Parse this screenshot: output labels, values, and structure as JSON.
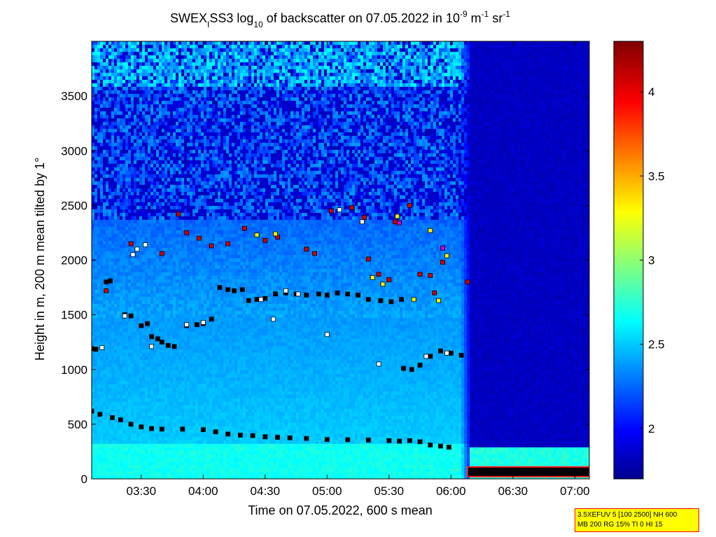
{
  "chart_data": {
    "type": "heatmap",
    "title": {
      "prefix": "SWEX",
      "sub1": "I",
      "mid": "SS3 log",
      "sub2": "10",
      "mid2": " of backscatter on 07.05.2022 in 10",
      "sup1": "-9",
      "mid3": " m",
      "sup2": "-1",
      "mid4": " sr",
      "sup3": "-1"
    },
    "xlabel": "Time on 07.05.2022, 600 s mean",
    "ylabel": "Height in m, 200 m mean tilted by 1°",
    "x_ticks": [
      "03:30",
      "04:00",
      "04:30",
      "05:00",
      "05:30",
      "06:00",
      "06:30",
      "07:00"
    ],
    "x_tick_minutes": [
      210,
      240,
      270,
      300,
      330,
      360,
      390,
      420
    ],
    "xlim_minutes": [
      186,
      427
    ],
    "y_ticks": [
      "0",
      "500",
      "1000",
      "1500",
      "2000",
      "2500",
      "3000",
      "3500"
    ],
    "y_tick_values": [
      0,
      500,
      1000,
      1500,
      2000,
      2500,
      3000,
      3500
    ],
    "ylim": [
      0,
      4000
    ],
    "colorbar": {
      "ticks": [
        "2",
        "2.5",
        "3",
        "3.5",
        "4"
      ],
      "tick_values": [
        2,
        2.5,
        3,
        3.5,
        4
      ],
      "range": [
        1.7,
        4.3
      ],
      "colormap": "jet"
    },
    "regions": {
      "data_end_minutes": 366,
      "low_layer_top_m": 300
    },
    "series": [
      {
        "marker_color": "#000000",
        "points": [
          [
            186,
            620
          ],
          [
            190,
            590
          ],
          [
            196,
            560
          ],
          [
            200,
            540
          ],
          [
            205,
            500
          ],
          [
            210,
            475
          ],
          [
            215,
            460
          ],
          [
            220,
            455
          ],
          [
            230,
            455
          ],
          [
            240,
            450
          ],
          [
            246,
            430
          ],
          [
            252,
            410
          ],
          [
            258,
            400
          ],
          [
            264,
            395
          ],
          [
            270,
            385
          ],
          [
            276,
            380
          ],
          [
            282,
            375
          ],
          [
            290,
            370
          ],
          [
            300,
            360
          ],
          [
            310,
            358
          ],
          [
            320,
            355
          ],
          [
            330,
            350
          ],
          [
            335,
            345
          ],
          [
            340,
            350
          ],
          [
            345,
            340
          ],
          [
            350,
            310
          ],
          [
            355,
            300
          ],
          [
            359,
            290
          ]
        ]
      },
      {
        "marker_color": "#000000",
        "points": [
          [
            186,
            1190
          ],
          [
            188,
            1185
          ],
          [
            193,
            1800
          ],
          [
            195,
            1810
          ],
          [
            202,
            1500
          ],
          [
            205,
            1490
          ],
          [
            210,
            1400
          ],
          [
            213,
            1420
          ],
          [
            215,
            1300
          ],
          [
            218,
            1280
          ],
          [
            220,
            1250
          ],
          [
            223,
            1220
          ],
          [
            226,
            1210
          ],
          [
            232,
            1400
          ],
          [
            237,
            1410
          ],
          [
            240,
            1420
          ],
          [
            244,
            1460
          ],
          [
            248,
            1750
          ],
          [
            252,
            1730
          ],
          [
            255,
            1720
          ],
          [
            259,
            1730
          ],
          [
            262,
            1630
          ],
          [
            266,
            1640
          ],
          [
            270,
            1650
          ],
          [
            275,
            1690
          ],
          [
            280,
            1700
          ],
          [
            285,
            1690
          ],
          [
            290,
            1680
          ],
          [
            296,
            1690
          ],
          [
            300,
            1680
          ],
          [
            305,
            1700
          ],
          [
            310,
            1690
          ],
          [
            315,
            1680
          ],
          [
            320,
            1640
          ],
          [
            326,
            1630
          ],
          [
            331,
            1620
          ],
          [
            336,
            1640
          ],
          [
            337,
            1010
          ],
          [
            341,
            1000
          ],
          [
            345,
            1040
          ],
          [
            350,
            1120
          ],
          [
            355,
            1170
          ],
          [
            360,
            1150
          ],
          [
            365,
            1130
          ]
        ]
      },
      {
        "marker_color": "#ffffff",
        "points": [
          [
            191,
            1200
          ],
          [
            202,
            1490
          ],
          [
            206,
            2050
          ],
          [
            208,
            2100
          ],
          [
            212,
            2140
          ],
          [
            215,
            1210
          ],
          [
            232,
            1410
          ],
          [
            240,
            1430
          ],
          [
            268,
            1640
          ],
          [
            274,
            1460
          ],
          [
            280,
            1720
          ],
          [
            286,
            1690
          ],
          [
            300,
            1320
          ],
          [
            306,
            2460
          ],
          [
            317,
            2350
          ],
          [
            325,
            1050
          ],
          [
            348,
            1120
          ],
          [
            358,
            1150
          ]
        ]
      },
      {
        "marker_color": "#cc0000",
        "points": [
          [
            193,
            1720
          ],
          [
            205,
            2150
          ],
          [
            220,
            2060
          ],
          [
            228,
            2420
          ],
          [
            232,
            2250
          ],
          [
            238,
            2200
          ],
          [
            244,
            2130
          ],
          [
            252,
            2150
          ],
          [
            260,
            2290
          ],
          [
            270,
            2180
          ],
          [
            276,
            2210
          ],
          [
            290,
            2100
          ],
          [
            294,
            2060
          ],
          [
            302,
            2450
          ],
          [
            312,
            2480
          ],
          [
            318,
            2390
          ],
          [
            320,
            2010
          ],
          [
            325,
            1870
          ],
          [
            330,
            1820
          ],
          [
            333,
            2350
          ],
          [
            340,
            2500
          ],
          [
            345,
            1870
          ],
          [
            350,
            1860
          ],
          [
            352,
            1700
          ],
          [
            356,
            1980
          ],
          [
            368,
            1800
          ]
        ]
      },
      {
        "marker_color": "#ffee00",
        "points": [
          [
            266,
            2230
          ],
          [
            275,
            2240
          ],
          [
            322,
            1840
          ],
          [
            327,
            1780
          ],
          [
            334,
            2400
          ],
          [
            342,
            1640
          ],
          [
            350,
            2270
          ],
          [
            354,
            1630
          ],
          [
            358,
            2040
          ]
        ]
      },
      {
        "marker_color": "#cc00cc",
        "points": [
          [
            335,
            2340
          ],
          [
            356,
            2110
          ]
        ]
      }
    ]
  },
  "infobox": {
    "line1": "3.5XEFUV 5 [100 2500] NH 600",
    "line2": "MB 200 RG 15% TI 0 HI 15"
  }
}
